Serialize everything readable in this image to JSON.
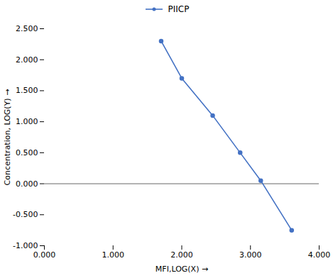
{
  "chart_data": {
    "type": "line",
    "x": [
      1.7,
      2.0,
      2.45,
      2.85,
      3.15,
      3.6
    ],
    "series": [
      {
        "name": "PIICP",
        "color": "#4472c4",
        "marker": "circle",
        "values": [
          2.3,
          1.7,
          1.1,
          0.5,
          0.05,
          -0.75
        ]
      }
    ],
    "xlabel": "MFI,LOG(X)",
    "ylabel": "Concentration, LOG(Y)",
    "xlim": [
      0.0,
      4.0
    ],
    "ylim": [
      -1.0,
      2.5
    ],
    "xticks": [
      {
        "value": 0.0,
        "label": "0.000"
      },
      {
        "value": 1.0,
        "label": "1.000"
      },
      {
        "value": 2.0,
        "label": "2.000"
      },
      {
        "value": 3.0,
        "label": "3.000"
      },
      {
        "value": 4.0,
        "label": "4.000"
      }
    ],
    "yticks": [
      {
        "value": -1.0,
        "label": "-1.000"
      },
      {
        "value": -0.5,
        "label": "-0.500"
      },
      {
        "value": 0.0,
        "label": "0.000"
      },
      {
        "value": 0.5,
        "label": "0.500"
      },
      {
        "value": 1.0,
        "label": "1.000"
      },
      {
        "value": 1.5,
        "label": "1.500"
      },
      {
        "value": 2.0,
        "label": "2.000"
      },
      {
        "value": 2.5,
        "label": "2.500"
      }
    ],
    "grid": false,
    "legend": "top"
  }
}
